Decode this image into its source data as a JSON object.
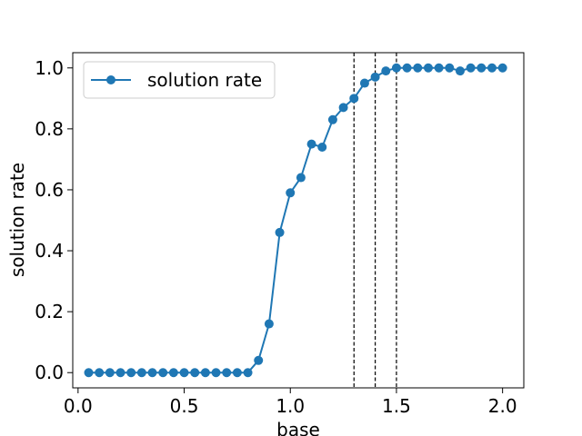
{
  "chart_data": {
    "type": "line",
    "xlabel": "base",
    "ylabel": "solution rate",
    "xlim": [
      -0.025,
      2.1
    ],
    "ylim": [
      -0.05,
      1.05
    ],
    "xticks": [
      "0.0",
      "0.5",
      "1.0",
      "1.5",
      "2.0"
    ],
    "xtick_values": [
      0.0,
      0.5,
      1.0,
      1.5,
      2.0
    ],
    "yticks": [
      "0.0",
      "0.2",
      "0.4",
      "0.6",
      "0.8",
      "1.0"
    ],
    "ytick_values": [
      0.0,
      0.2,
      0.4,
      0.6,
      0.8,
      1.0
    ],
    "grid": false,
    "legend_position": "upper-left",
    "series": [
      {
        "name": "solution rate",
        "color": "#1f77b4",
        "marker": "circle",
        "x": [
          0.05,
          0.1,
          0.15,
          0.2,
          0.25,
          0.3,
          0.35,
          0.4,
          0.45,
          0.5,
          0.55,
          0.6,
          0.65,
          0.7,
          0.75,
          0.8,
          0.85,
          0.9,
          0.95,
          1.0,
          1.05,
          1.1,
          1.15,
          1.2,
          1.25,
          1.3,
          1.35,
          1.4,
          1.45,
          1.5,
          1.55,
          1.6,
          1.65,
          1.7,
          1.75,
          1.8,
          1.85,
          1.9,
          1.95,
          2.0
        ],
        "y": [
          0,
          0,
          0,
          0,
          0,
          0,
          0,
          0,
          0,
          0,
          0,
          0,
          0,
          0,
          0,
          0,
          0.04,
          0.16,
          0.46,
          0.59,
          0.64,
          0.75,
          0.74,
          0.83,
          0.87,
          0.9,
          0.95,
          0.97,
          0.99,
          1.0,
          1.0,
          1.0,
          1.0,
          1.0,
          1.0,
          0.99,
          1.0,
          1.0,
          1.0,
          1.0
        ]
      }
    ],
    "vlines": [
      {
        "x": 1.3,
        "style": "dashed",
        "color": "#000000"
      },
      {
        "x": 1.4,
        "style": "dashed",
        "color": "#000000"
      },
      {
        "x": 1.5,
        "style": "dashed",
        "color": "#000000"
      }
    ]
  }
}
